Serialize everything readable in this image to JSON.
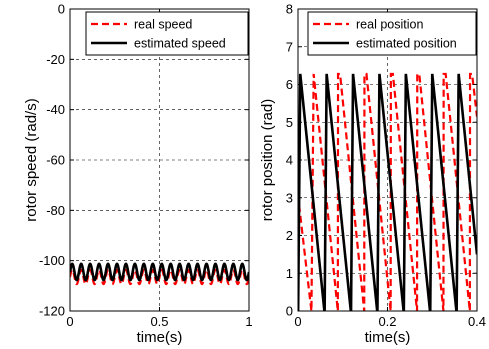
{
  "chart_data": [
    {
      "type": "line",
      "xlabel": "time(s)",
      "ylabel": "rotor speed (rad/s)",
      "xlim": [
        0,
        1
      ],
      "ylim": [
        -120,
        0
      ],
      "xticks": [
        0,
        0.5,
        1
      ],
      "xtick_labels": [
        "0",
        "0.5",
        "1"
      ],
      "yticks": [
        -120,
        -100,
        -80,
        -60,
        -40,
        -20,
        0
      ],
      "ytick_labels": [
        "-120",
        "-100",
        "-80",
        "-60",
        "-40",
        "-20",
        "0"
      ],
      "grid": true,
      "legend_position": "top-right",
      "series": [
        {
          "name": "real speed",
          "color": "#ff0000",
          "style": "dashed",
          "description_values": {
            "mean": -106.5,
            "amplitude": 2.8,
            "period_s": 0.05,
            "x_range": [
              0,
              1
            ]
          }
        },
        {
          "name": "estimated speed",
          "color": "#000000",
          "style": "solid",
          "description_values": {
            "mean": -104.5,
            "amplitude": 3.2,
            "period_s": 0.05,
            "x_range": [
              0,
              1
            ]
          }
        }
      ]
    },
    {
      "type": "line",
      "xlabel": "time(s)",
      "ylabel": "rotor position (rad)",
      "xlim": [
        0,
        0.4
      ],
      "ylim": [
        0,
        8
      ],
      "xticks": [
        0,
        0.2,
        0.4
      ],
      "xtick_labels": [
        "0",
        "0.2",
        "0.4"
      ],
      "yticks": [
        0,
        1,
        2,
        3,
        4,
        5,
        6,
        7,
        8
      ],
      "ytick_labels": [
        "0",
        "1",
        "2",
        "3",
        "4",
        "5",
        "6",
        "7",
        "8"
      ],
      "grid": true,
      "legend_position": "top-right",
      "series": [
        {
          "name": "real position",
          "color": "#ff0000",
          "style": "dashed",
          "x": [
            0,
            0.0005,
            0.03,
            0.035,
            0.089,
            0.0895,
            0.094,
            0.148,
            0.1485,
            0.153,
            0.207,
            0.2075,
            0.212,
            0.266,
            0.2665,
            0.271,
            0.325,
            0.3255,
            0.33,
            0.384,
            0.3845,
            0.389,
            0.4
          ],
          "y": [
            3.1,
            3.0,
            0.0,
            6.28,
            0.0,
            6.28,
            6.28,
            0.0,
            6.28,
            6.28,
            0.0,
            6.28,
            6.28,
            0.0,
            6.28,
            6.28,
            0.0,
            6.28,
            6.28,
            0.0,
            6.28,
            6.28,
            5.15
          ]
        },
        {
          "name": "estimated position",
          "color": "#000000",
          "style": "solid",
          "x": [
            0,
            0.0003,
            0.005,
            0.059,
            0.0595,
            0.064,
            0.118,
            0.1185,
            0.123,
            0.177,
            0.1775,
            0.182,
            0.236,
            0.2365,
            0.241,
            0.295,
            0.2955,
            0.3,
            0.354,
            0.3545,
            0.359,
            0.4
          ],
          "y": [
            0.3,
            0.0,
            6.28,
            0.0,
            0.0,
            6.28,
            0.0,
            0.0,
            6.28,
            0.0,
            0.0,
            6.28,
            0.0,
            0.0,
            6.28,
            0.0,
            0.0,
            6.28,
            0.0,
            0.0,
            6.28,
            1.5
          ]
        }
      ]
    }
  ]
}
